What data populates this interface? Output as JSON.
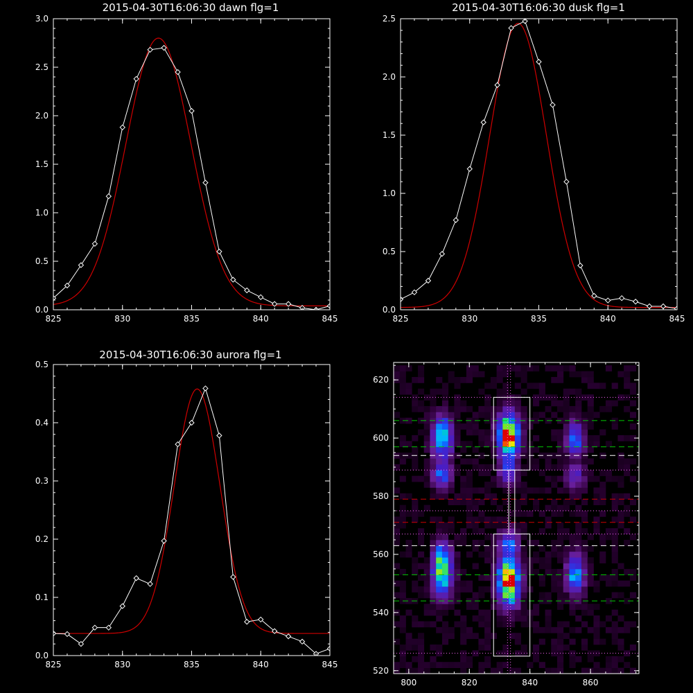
{
  "chart_data": [
    {
      "type": "line",
      "title": "2015-04-30T16:06:30 dawn flg=1",
      "xlabel": "",
      "ylabel": "",
      "xlim": [
        825,
        845
      ],
      "ylim": [
        0,
        3.0
      ],
      "xticks": [
        825,
        830,
        835,
        840,
        845
      ],
      "yticks": [
        0.0,
        0.5,
        1.0,
        1.5,
        2.0,
        2.5,
        3.0
      ],
      "ytick_labels": [
        "0.0",
        "0.5",
        "1.0",
        "1.5",
        "2.0",
        "2.5",
        "3.0"
      ],
      "series": [
        {
          "color": "#ffffff",
          "marker": "diamond",
          "x": [
            825,
            826,
            827,
            828,
            829,
            830,
            831,
            832,
            833,
            834,
            835,
            836,
            837,
            838,
            839,
            840,
            841,
            842,
            843,
            844,
            845
          ],
          "y": [
            0.12,
            0.25,
            0.46,
            0.68,
            1.17,
            1.88,
            2.38,
            2.68,
            2.7,
            2.45,
            2.05,
            1.31,
            0.6,
            0.31,
            0.2,
            0.13,
            0.06,
            0.06,
            0.02,
            0.0,
            0.04
          ]
        },
        {
          "color": "#d00000",
          "fit": "gaussian",
          "amplitude": 2.76,
          "center": 832.6,
          "sigma": 2.35,
          "offset": 0.04
        }
      ]
    },
    {
      "type": "line",
      "title": "2015-04-30T16:06:30 dusk flg=1",
      "xlabel": "",
      "ylabel": "",
      "xlim": [
        825,
        845
      ],
      "ylim": [
        0,
        2.5
      ],
      "xticks": [
        825,
        830,
        835,
        840,
        845
      ],
      "yticks": [
        0.0,
        0.5,
        1.0,
        1.5,
        2.0,
        2.5
      ],
      "ytick_labels": [
        "0.0",
        "0.5",
        "1.0",
        "1.5",
        "2.0",
        "2.5"
      ],
      "series": [
        {
          "color": "#ffffff",
          "marker": "diamond",
          "x": [
            825,
            826,
            827,
            828,
            829,
            830,
            831,
            832,
            833,
            834,
            835,
            836,
            837,
            838,
            839,
            840,
            841,
            842,
            843,
            844,
            845
          ],
          "y": [
            0.09,
            0.15,
            0.25,
            0.48,
            0.77,
            1.21,
            1.61,
            1.93,
            2.42,
            2.48,
            2.13,
            1.76,
            1.1,
            0.38,
            0.12,
            0.08,
            0.1,
            0.07,
            0.03,
            0.03,
            0.01
          ]
        },
        {
          "color": "#d00000",
          "fit": "gaussian",
          "amplitude": 2.44,
          "center": 833.5,
          "sigma": 2.05,
          "offset": 0.02
        }
      ]
    },
    {
      "type": "line",
      "title": "2015-04-30T16:06:30 aurora flg=1",
      "xlabel": "",
      "ylabel": "",
      "xlim": [
        825,
        845
      ],
      "ylim": [
        0,
        0.5
      ],
      "xticks": [
        825,
        830,
        835,
        840,
        845
      ],
      "yticks": [
        0.0,
        0.1,
        0.2,
        0.3,
        0.4,
        0.5
      ],
      "ytick_labels": [
        "0.0",
        "0.1",
        "0.2",
        "0.3",
        "0.4",
        "0.5"
      ],
      "series": [
        {
          "color": "#ffffff",
          "marker": "diamond",
          "x": [
            825,
            826,
            827,
            828,
            829,
            830,
            831,
            832,
            833,
            834,
            835,
            836,
            837,
            838,
            839,
            840,
            841,
            842,
            843,
            844,
            845
          ],
          "y": [
            0.038,
            0.037,
            0.02,
            0.048,
            0.048,
            0.085,
            0.133,
            0.123,
            0.197,
            0.363,
            0.4,
            0.459,
            0.378,
            0.135,
            0.058,
            0.062,
            0.042,
            0.033,
            0.024,
            0.003,
            0.012
          ]
        },
        {
          "color": "#d00000",
          "fit": "gaussian",
          "amplitude": 0.42,
          "center": 835.4,
          "sigma": 1.65,
          "offset": 0.038
        }
      ]
    },
    {
      "type": "heatmap",
      "title": "",
      "xlabel": "",
      "ylabel": "",
      "xlim": [
        795,
        876
      ],
      "ylim": [
        519,
        626
      ],
      "xticks": [
        800,
        820,
        840,
        860
      ],
      "yticks": [
        520,
        540,
        560,
        580,
        600,
        620
      ],
      "colormap": "rainbow",
      "blobs": [
        {
          "x": 811,
          "y": 600,
          "sx": 2.2,
          "sy": 5.0,
          "amp": 0.62
        },
        {
          "x": 811,
          "y": 587,
          "sx": 2.2,
          "sy": 3.0,
          "amp": 0.4
        },
        {
          "x": 811,
          "y": 553,
          "sx": 2.2,
          "sy": 5.0,
          "amp": 0.68
        },
        {
          "x": 811,
          "y": 560,
          "sx": 2.0,
          "sy": 3.0,
          "amp": 0.35
        },
        {
          "x": 833,
          "y": 601,
          "sx": 2.4,
          "sy": 5.0,
          "amp": 1.0
        },
        {
          "x": 833,
          "y": 588,
          "sx": 2.0,
          "sy": 3.0,
          "amp": 0.35
        },
        {
          "x": 833,
          "y": 551,
          "sx": 2.4,
          "sy": 5.5,
          "amp": 1.0
        },
        {
          "x": 833,
          "y": 564,
          "sx": 2.0,
          "sy": 3.0,
          "amp": 0.4
        },
        {
          "x": 855,
          "y": 600,
          "sx": 2.0,
          "sy": 4.0,
          "amp": 0.45
        },
        {
          "x": 855,
          "y": 587,
          "sx": 2.0,
          "sy": 3.0,
          "amp": 0.28
        },
        {
          "x": 855,
          "y": 553,
          "sx": 2.0,
          "sy": 4.5,
          "amp": 0.55
        }
      ],
      "boxes": [
        {
          "x0": 828,
          "x1": 840,
          "y0": 589,
          "y1": 614,
          "color": "#ffffff"
        },
        {
          "x0": 833,
          "x1": 835,
          "y0": 567,
          "y1": 589,
          "color": "#ffffff"
        },
        {
          "x0": 828,
          "x1": 840,
          "y0": 525,
          "y1": 567,
          "color": "#ffffff"
        }
      ],
      "hlines": [
        {
          "y": 614,
          "color": "#ff66ff",
          "style": "dotted"
        },
        {
          "y": 606,
          "color": "#00cc00",
          "style": "dashed"
        },
        {
          "y": 597,
          "color": "#00cc00",
          "style": "dashed"
        },
        {
          "y": 594,
          "color": "#ffffff",
          "style": "dashed"
        },
        {
          "y": 589,
          "color": "#ff66ff",
          "style": "dotted"
        },
        {
          "y": 579,
          "color": "#d00000",
          "style": "dashed"
        },
        {
          "y": 575,
          "color": "#ff66ff",
          "style": "dotted"
        },
        {
          "y": 571,
          "color": "#d00000",
          "style": "dashed"
        },
        {
          "y": 567,
          "color": "#ff66ff",
          "style": "dotted"
        },
        {
          "y": 563,
          "color": "#ffffff",
          "style": "dashed"
        },
        {
          "y": 553,
          "color": "#00cc00",
          "style": "dashed"
        },
        {
          "y": 544,
          "color": "#00cc00",
          "style": "dashed"
        },
        {
          "y": 526,
          "color": "#ff66ff",
          "style": "dotted"
        }
      ],
      "vlines": [
        {
          "x": 832.6,
          "color": "#ff66ff",
          "style": "dotted"
        },
        {
          "x": 833.6,
          "color": "#ff66ff",
          "style": "dotted"
        }
      ]
    }
  ]
}
